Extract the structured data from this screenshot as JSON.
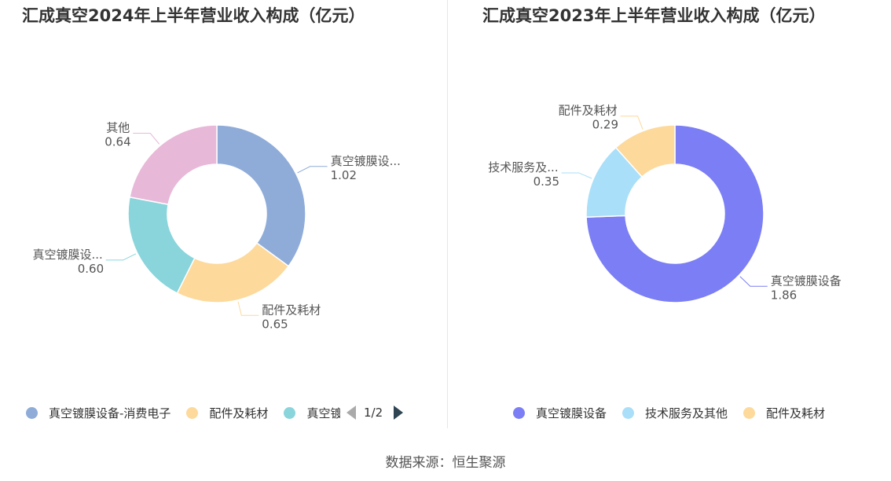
{
  "chart_data": [
    {
      "type": "pie",
      "title": "汇成真空2024年上半年营业收入构成（亿元）",
      "categories": [
        "真空镀膜设备-消费电子",
        "配件及耗材",
        "真空镀膜设备-其他",
        "其他"
      ],
      "label_texts": [
        "真空镀膜设...",
        "配件及耗材",
        "真空镀膜设...",
        "其他"
      ],
      "values": [
        1.02,
        0.65,
        0.6,
        0.64
      ],
      "value_labels": [
        "1.02",
        "0.65",
        "0.60",
        "0.64"
      ],
      "colors": [
        "#8facd9",
        "#fdd99b",
        "#89d5db",
        "#e8b8d8"
      ],
      "legend": {
        "placement": "bottom",
        "items": [
          "真空镀膜设备-消费电子",
          "配件及耗材",
          "真空镀膜设备"
        ],
        "page": "1/2"
      }
    },
    {
      "type": "pie",
      "title": "汇成真空2023年上半年营业收入构成（亿元）",
      "categories": [
        "真空镀膜设备",
        "技术服务及其他",
        "配件及耗材"
      ],
      "label_texts": [
        "真空镀膜设备",
        "技术服务及...",
        "配件及耗材"
      ],
      "values": [
        1.86,
        0.35,
        0.29
      ],
      "value_labels": [
        "1.86",
        "0.35",
        "0.29"
      ],
      "colors": [
        "#7b7ef4",
        "#a9dff8",
        "#fdd99b"
      ],
      "legend": {
        "placement": "bottom",
        "items": [
          "真空镀膜设备",
          "技术服务及其他",
          "配件及耗材"
        ]
      }
    }
  ],
  "source": "数据来源：恒生聚源"
}
